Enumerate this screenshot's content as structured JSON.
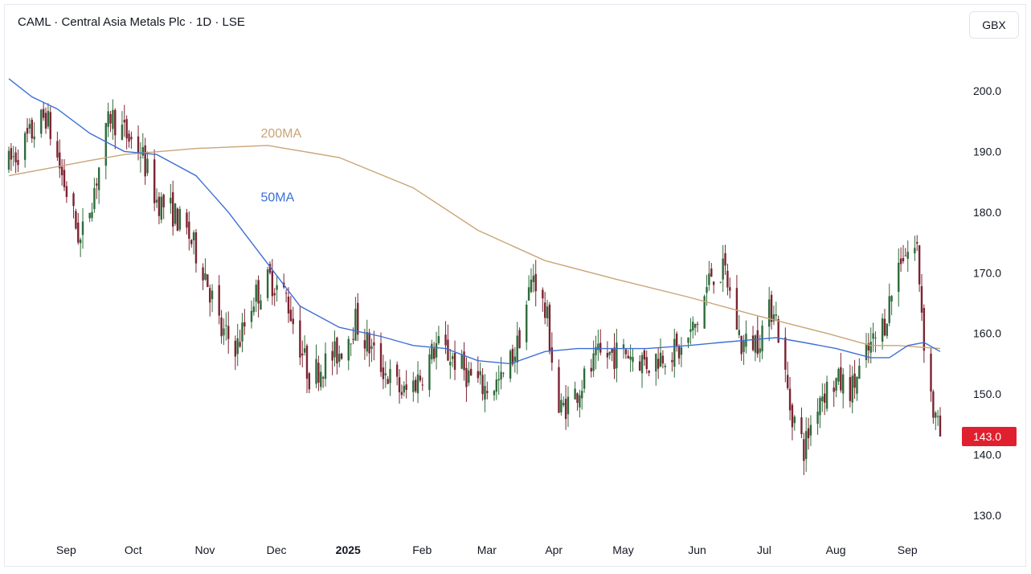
{
  "header": {
    "title": "CAML · Central Asia Metals Plc · 1D · LSE",
    "currency_button": "GBX"
  },
  "colors": {
    "up": "#2e6b3a",
    "down": "#7b2331",
    "ma50": "#3d6fd6",
    "ma200": "#c9a577",
    "last_price_bg": "#e0202e"
  },
  "chart_data": {
    "type": "candlestick",
    "title": "CAML · Central Asia Metals Plc · 1D · LSE",
    "currency": "GBX",
    "y_ticks": [
      "200.0",
      "190.0",
      "180.0",
      "170.0",
      "160.0",
      "150.0",
      "140.0",
      "130.0"
    ],
    "ylim": [
      127,
      211
    ],
    "x_ticks": [
      {
        "label": "Sep",
        "date": "2024-09-02",
        "bold": false
      },
      {
        "label": "Oct",
        "date": "2024-10-01",
        "bold": false
      },
      {
        "label": "Nov",
        "date": "2024-11-01",
        "bold": false
      },
      {
        "label": "Dec",
        "date": "2024-12-02",
        "bold": false
      },
      {
        "label": "2025",
        "date": "2025-01-02",
        "bold": true
      },
      {
        "label": "Feb",
        "date": "2025-02-03",
        "bold": false
      },
      {
        "label": "Mar",
        "date": "2025-03-03",
        "bold": false
      },
      {
        "label": "Apr",
        "date": "2025-04-01",
        "bold": false
      },
      {
        "label": "May",
        "date": "2025-05-01",
        "bold": false
      },
      {
        "label": "Jun",
        "date": "2025-06-02",
        "bold": false
      },
      {
        "label": "Jul",
        "date": "2025-07-01",
        "bold": false
      },
      {
        "label": "Aug",
        "date": "2025-08-01",
        "bold": false
      },
      {
        "label": "Sep",
        "date": "2025-09-01",
        "bold": false
      }
    ],
    "last_price": "143.0",
    "ma_labels": {
      "ma50": "50MA",
      "ma200": "200MA"
    },
    "price_path": [
      [
        "2024-08-12",
        188
      ],
      [
        "2024-08-20",
        192
      ],
      [
        "2024-08-28",
        196
      ],
      [
        "2024-09-04",
        186
      ],
      [
        "2024-09-12",
        175
      ],
      [
        "2024-09-18",
        184
      ],
      [
        "2024-09-25",
        196
      ],
      [
        "2024-10-01",
        193
      ],
      [
        "2024-10-08",
        190
      ],
      [
        "2024-10-15",
        182
      ],
      [
        "2024-10-22",
        180
      ],
      [
        "2024-10-29",
        176
      ],
      [
        "2024-11-05",
        170
      ],
      [
        "2024-11-12",
        160
      ],
      [
        "2024-11-19",
        158
      ],
      [
        "2024-11-26",
        166
      ],
      [
        "2024-12-03",
        169
      ],
      [
        "2024-12-10",
        166
      ],
      [
        "2024-12-16",
        158
      ],
      [
        "2024-12-20",
        153
      ],
      [
        "2025-01-02",
        157
      ],
      [
        "2025-01-09",
        162
      ],
      [
        "2025-01-16",
        157
      ],
      [
        "2025-01-23",
        153
      ],
      [
        "2025-01-30",
        150
      ],
      [
        "2025-02-06",
        153
      ],
      [
        "2025-02-13",
        158
      ],
      [
        "2025-02-20",
        156
      ],
      [
        "2025-02-27",
        153
      ],
      [
        "2025-03-06",
        151
      ],
      [
        "2025-03-13",
        152
      ],
      [
        "2025-03-20",
        158
      ],
      [
        "2025-03-27",
        170
      ],
      [
        "2025-04-02",
        162
      ],
      [
        "2025-04-07",
        147
      ],
      [
        "2025-04-14",
        150
      ],
      [
        "2025-04-24",
        156
      ],
      [
        "2025-05-06",
        157
      ],
      [
        "2025-05-16",
        155
      ],
      [
        "2025-05-23",
        157
      ],
      [
        "2025-05-30",
        157
      ],
      [
        "2025-06-06",
        162
      ],
      [
        "2025-06-12",
        170
      ],
      [
        "2025-06-18",
        170
      ],
      [
        "2025-06-25",
        158
      ],
      [
        "2025-07-02",
        159
      ],
      [
        "2025-07-09",
        165
      ],
      [
        "2025-07-16",
        148
      ],
      [
        "2025-07-22",
        141
      ],
      [
        "2025-07-29",
        150
      ],
      [
        "2025-08-05",
        152
      ],
      [
        "2025-08-12",
        151
      ],
      [
        "2025-08-19",
        157
      ],
      [
        "2025-08-26",
        162
      ],
      [
        "2025-09-02",
        173
      ],
      [
        "2025-09-09",
        174
      ],
      [
        "2025-09-12",
        159
      ],
      [
        "2025-09-16",
        147
      ],
      [
        "2025-09-19",
        143
      ]
    ],
    "ma50_path": [
      [
        "2024-08-12",
        202
      ],
      [
        "2024-08-22",
        199
      ],
      [
        "2024-09-02",
        197
      ],
      [
        "2024-09-16",
        193
      ],
      [
        "2024-10-01",
        190
      ],
      [
        "2024-10-15",
        189.5
      ],
      [
        "2024-11-01",
        186
      ],
      [
        "2024-11-15",
        180
      ],
      [
        "2024-12-01",
        172
      ],
      [
        "2024-12-16",
        164.5
      ],
      [
        "2025-01-02",
        161
      ],
      [
        "2025-01-20",
        159.5
      ],
      [
        "2025-02-03",
        158
      ],
      [
        "2025-02-17",
        157.5
      ],
      [
        "2025-03-03",
        155.5
      ],
      [
        "2025-03-17",
        155
      ],
      [
        "2025-04-01",
        157
      ],
      [
        "2025-04-15",
        157.5
      ],
      [
        "2025-05-01",
        157.5
      ],
      [
        "2025-05-15",
        157.5
      ],
      [
        "2025-06-02",
        158
      ],
      [
        "2025-06-16",
        158.5
      ],
      [
        "2025-07-01",
        159
      ],
      [
        "2025-07-10",
        159.3
      ],
      [
        "2025-07-22",
        158.5
      ],
      [
        "2025-08-05",
        157.5
      ],
      [
        "2025-08-20",
        156
      ],
      [
        "2025-08-28",
        156
      ],
      [
        "2025-09-05",
        158
      ],
      [
        "2025-09-12",
        158.5
      ],
      [
        "2025-09-19",
        157
      ]
    ],
    "ma200_path": [
      [
        "2024-08-12",
        186
      ],
      [
        "2024-09-02",
        187.5
      ],
      [
        "2024-09-16",
        188.5
      ],
      [
        "2024-10-01",
        189.5
      ],
      [
        "2024-11-01",
        190.5
      ],
      [
        "2024-12-02",
        191
      ],
      [
        "2025-01-02",
        189
      ],
      [
        "2025-02-03",
        184
      ],
      [
        "2025-03-03",
        177
      ],
      [
        "2025-04-01",
        172
      ],
      [
        "2025-05-01",
        169
      ],
      [
        "2025-06-02",
        166
      ],
      [
        "2025-07-01",
        163
      ],
      [
        "2025-08-01",
        160
      ],
      [
        "2025-08-20",
        158
      ],
      [
        "2025-09-01",
        158
      ],
      [
        "2025-09-19",
        157.5
      ]
    ]
  }
}
